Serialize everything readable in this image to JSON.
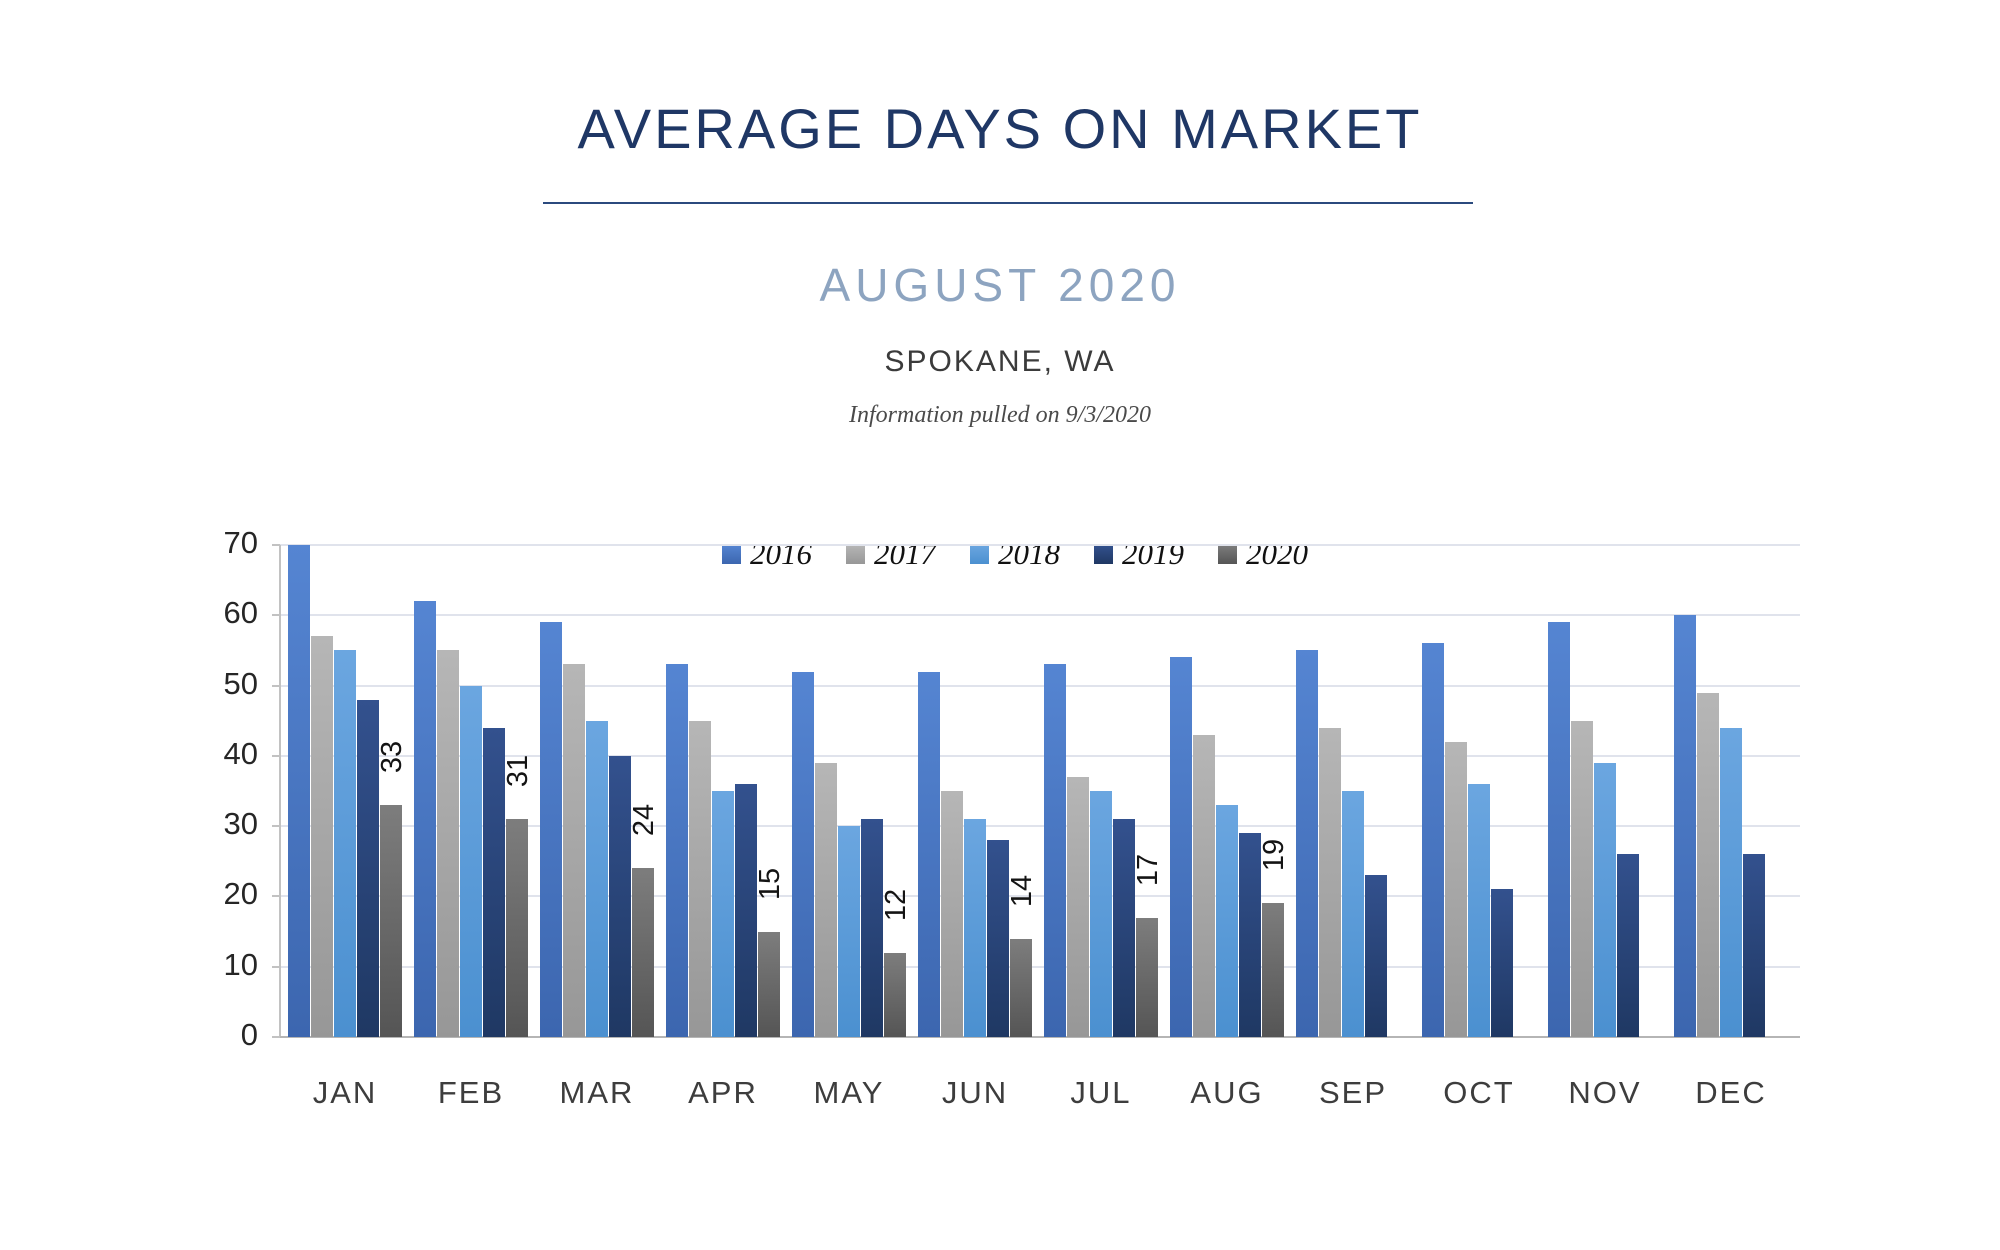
{
  "header": {
    "title": "AVERAGE DAYS ON MARKET",
    "subtitle": "AUGUST 2020",
    "location": "SPOKANE, WA",
    "info_note": "Information pulled on 9/3/2020"
  },
  "colors": {
    "title_navy": "#1f3765",
    "subtitle_blue": "#8da4c0",
    "gridline": "#e0e3ec"
  },
  "chart_data": {
    "type": "bar",
    "title": "AVERAGE DAYS ON MARKET",
    "categories": [
      "JAN",
      "FEB",
      "MAR",
      "APR",
      "MAY",
      "JUN",
      "JUL",
      "AUG",
      "SEP",
      "OCT",
      "NOV",
      "DEC"
    ],
    "series": [
      {
        "name": "2016",
        "color": "#4472c4",
        "color_top": "#5585d2",
        "color_bottom": "#3c66af",
        "values": [
          70,
          62,
          59,
          53,
          52,
          52,
          53,
          54,
          55,
          56,
          59,
          60
        ]
      },
      {
        "name": "2017",
        "color": "#a5a5a5",
        "color_top": "#b6b6b6",
        "color_bottom": "#979797",
        "values": [
          57,
          55,
          53,
          45,
          39,
          35,
          37,
          43,
          44,
          42,
          45,
          49
        ]
      },
      {
        "name": "2018",
        "color": "#5b9bd5",
        "color_top": "#6ba6e0",
        "color_bottom": "#4b90d0",
        "values": [
          55,
          50,
          45,
          35,
          30,
          31,
          35,
          33,
          35,
          36,
          39,
          44
        ]
      },
      {
        "name": "2019",
        "color": "#264478",
        "color_top": "#33518e",
        "color_bottom": "#1f3863",
        "values": [
          48,
          44,
          40,
          36,
          31,
          28,
          31,
          29,
          23,
          21,
          26,
          26
        ]
      },
      {
        "name": "2020",
        "color": "#636363",
        "color_top": "#7d7d7d",
        "color_bottom": "#555555",
        "values": [
          33,
          31,
          24,
          15,
          12,
          14,
          17,
          19,
          null,
          null,
          null,
          null
        ],
        "show_labels": true
      }
    ],
    "data_labels_2020": [
      "33",
      "31",
      "24",
      "15",
      "12",
      "14",
      "17",
      "19"
    ],
    "xlabel": "",
    "ylabel": "",
    "ylim": [
      0,
      70
    ],
    "ytick_step": 10,
    "yticks": [
      "0",
      "10",
      "20",
      "30",
      "40",
      "50",
      "60",
      "70"
    ],
    "grid": true,
    "legend_position": "top-center",
    "legend_entries": [
      "2016",
      "2017",
      "2018",
      "2019",
      "2020"
    ]
  }
}
